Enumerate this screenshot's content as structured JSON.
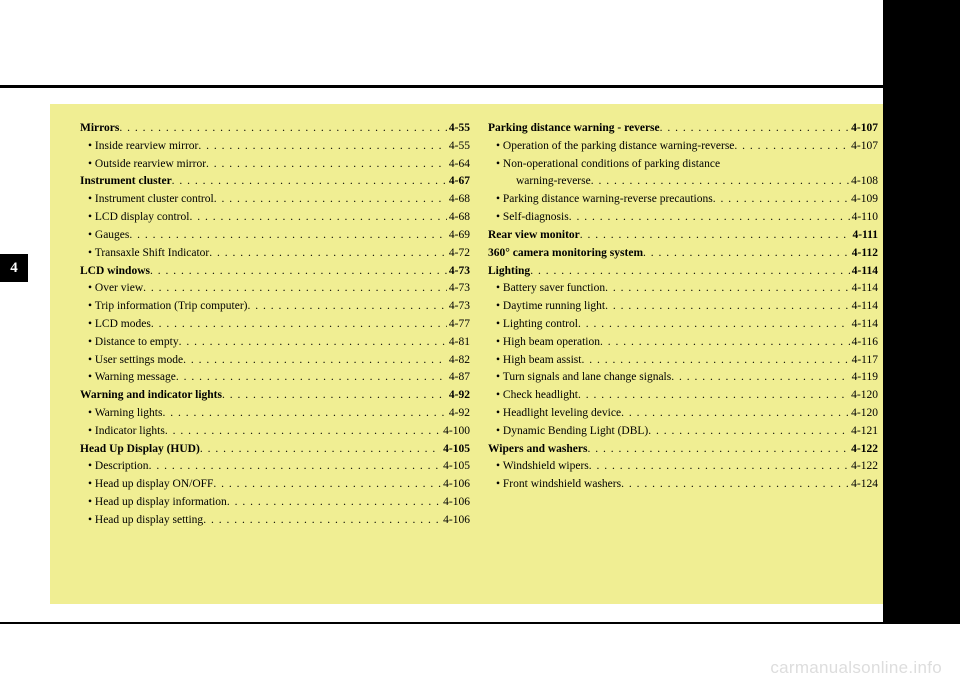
{
  "chapter_tab": "4",
  "watermark": "carmanualsonline.info",
  "columns": {
    "left": [
      {
        "label": "Mirrors",
        "page": "4-55",
        "bold": true
      },
      {
        "label": "• Inside rearview mirror",
        "page": "4-55",
        "sub": 1
      },
      {
        "label": "• Outside rearview mirror",
        "page": "4-64",
        "sub": 1
      },
      {
        "label": "Instrument cluster",
        "page": "4-67",
        "bold": true
      },
      {
        "label": "• Instrument cluster control",
        "page": "4-68",
        "sub": 1
      },
      {
        "label": "• LCD display control",
        "page": "4-68",
        "sub": 1
      },
      {
        "label": "• Gauges",
        "page": "4-69",
        "sub": 1
      },
      {
        "label": "• Transaxle Shift Indicator",
        "page": "4-72",
        "sub": 1
      },
      {
        "label": "LCD windows",
        "page": "4-73",
        "bold": true
      },
      {
        "label": "• Over view",
        "page": "4-73",
        "sub": 1
      },
      {
        "label": "• Trip information (Trip computer)",
        "page": "4-73",
        "sub": 1
      },
      {
        "label": "• LCD modes",
        "page": "4-77",
        "sub": 1
      },
      {
        "label": "• Distance to empty",
        "page": "4-81",
        "sub": 1
      },
      {
        "label": "• User settings mode",
        "page": "4-82",
        "sub": 1
      },
      {
        "label": "• Warning message",
        "page": "4-87",
        "sub": 1
      },
      {
        "label": "Warning and indicator lights",
        "page": "4-92",
        "bold": true
      },
      {
        "label": "• Warning lights",
        "page": "4-92",
        "sub": 1
      },
      {
        "label": "• Indicator lights",
        "page": "4-100",
        "sub": 1
      },
      {
        "label": "Head Up Display (HUD)",
        "page": "4-105",
        "bold": true
      },
      {
        "label": "• Description",
        "page": "4-105",
        "sub": 1
      },
      {
        "label": "• Head up display ON/OFF",
        "page": "4-106",
        "sub": 1
      },
      {
        "label": "• Head up display information",
        "page": "4-106",
        "sub": 1
      },
      {
        "label": "• Head up display setting",
        "page": "4-106",
        "sub": 1
      }
    ],
    "right": [
      {
        "label": "Parking distance warning - reverse",
        "page": "4-107",
        "bold": true
      },
      {
        "label": "• Operation of the parking distance warning-reverse",
        "page": "4-107",
        "sub": 1
      },
      {
        "label": "• Non-operational conditions of parking distance",
        "page": "",
        "sub": 1,
        "nodots": true
      },
      {
        "label": "warning-reverse",
        "page": "4-108",
        "sub": 2
      },
      {
        "label": "• Parking distance warning-reverse precautions",
        "page": "4-109",
        "sub": 1
      },
      {
        "label": "• Self-diagnosis",
        "page": "4-110",
        "sub": 1
      },
      {
        "label": "Rear view monitor",
        "page": "4-111",
        "bold": true
      },
      {
        "label": "360° camera monitoring system",
        "page": "4-112",
        "bold": true
      },
      {
        "label": "Lighting",
        "page": "4-114",
        "bold": true
      },
      {
        "label": "• Battery saver function",
        "page": "4-114",
        "sub": 1
      },
      {
        "label": "• Daytime running light",
        "page": "4-114",
        "sub": 1
      },
      {
        "label": "• Lighting control",
        "page": "4-114",
        "sub": 1
      },
      {
        "label": "• High beam operation",
        "page": "4-116",
        "sub": 1
      },
      {
        "label": "• High beam assist",
        "page": "4-117",
        "sub": 1
      },
      {
        "label": "• Turn signals and lane change signals",
        "page": "4-119",
        "sub": 1
      },
      {
        "label": "• Check headlight",
        "page": "4-120",
        "sub": 1
      },
      {
        "label": "• Headlight leveling device",
        "page": "4-120",
        "sub": 1
      },
      {
        "label": "• Dynamic Bending Light (DBL)",
        "page": "4-121",
        "sub": 1
      },
      {
        "label": "Wipers and washers",
        "page": "4-122",
        "bold": true
      },
      {
        "label": "• Windshield wipers",
        "page": "4-122",
        "sub": 1
      },
      {
        "label": "• Front windshield washers",
        "page": "4-124",
        "sub": 1
      }
    ]
  }
}
